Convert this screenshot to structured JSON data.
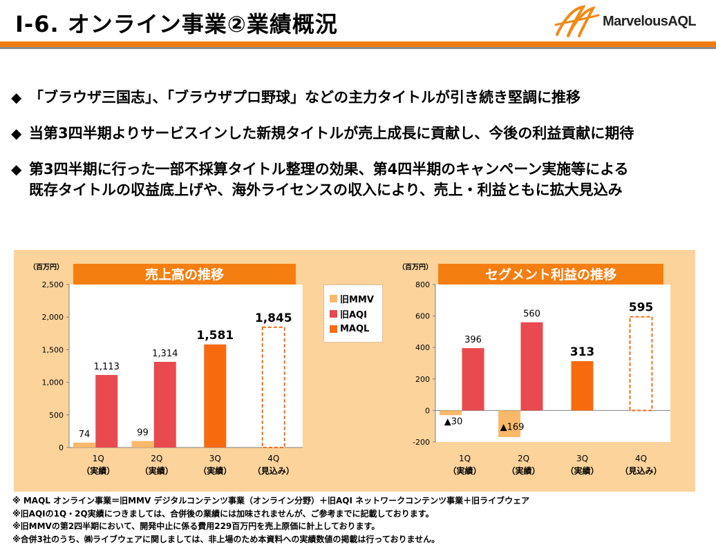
{
  "header": {
    "title": "Ⅰ-6. オンライン事業②業績概況",
    "logo_text": "MarvelousAQL",
    "accent_color": "#f07c10"
  },
  "bullets": [
    {
      "lines": [
        "「ブラウザ三国志」、「ブラウザプロ野球」などの主力タイトルが引き続き堅調に推移"
      ]
    },
    {
      "lines": [
        "当第3四半期よりサービスインした新規タイトルが売上成長に貢献し、今後の利益貢献に期待"
      ]
    },
    {
      "lines": [
        "第3四半期に行った一部不採算タイトル整理の効果、第4四半期のキャンペーン実施等による",
        "既存タイトルの収益底上げや、海外ライセンスの収入により、売上・利益ともに拡大見込み"
      ]
    }
  ],
  "bullet_mark": "◆",
  "legend": [
    {
      "label": "旧MMV",
      "color": "#f9b96a"
    },
    {
      "label": "旧AQI",
      "color": "#e84a4f"
    },
    {
      "label": "MAQL",
      "color": "#f76b0e"
    }
  ],
  "chart_data": [
    {
      "type": "bar",
      "title": "売上高の推移",
      "unit_label": "（百万円）",
      "ylim": [
        0,
        2500
      ],
      "yticks": [
        "0",
        "500",
        "1,000",
        "1,500",
        "2,000",
        "2,500"
      ],
      "ytick_values": [
        0,
        500,
        1000,
        1500,
        2000,
        2500
      ],
      "categories": [
        [
          "1Q",
          "（実績）"
        ],
        [
          "2Q",
          "（実績）"
        ],
        [
          "3Q",
          "（実績）"
        ],
        [
          "4Q",
          "（見込み）"
        ]
      ],
      "series": [
        {
          "name": "旧MMV",
          "values": [
            74,
            99,
            null,
            null
          ]
        },
        {
          "name": "旧AQI",
          "values": [
            1113,
            1314,
            null,
            null
          ]
        },
        {
          "name": "MAQL",
          "values": [
            null,
            null,
            1581,
            1845
          ]
        }
      ],
      "labels": {
        "旧MMV": [
          "74",
          "99",
          "",
          ""
        ],
        "旧AQI": [
          "1,113",
          "1,314",
          "",
          ""
        ],
        "MAQL": [
          "",
          "",
          "1,581",
          "1,845"
        ]
      },
      "forecast_index": 3,
      "grid": false
    },
    {
      "type": "bar",
      "title": "セグメント利益の推移",
      "unit_label": "（百万円）",
      "ylim": [
        -200,
        800
      ],
      "yticks": [
        "-200",
        "0",
        "200",
        "400",
        "600",
        "800"
      ],
      "ytick_values": [
        -200,
        0,
        200,
        400,
        600,
        800
      ],
      "categories": [
        [
          "1Q",
          "（実績）"
        ],
        [
          "2Q",
          "（実績）"
        ],
        [
          "3Q",
          "（実績）"
        ],
        [
          "4Q",
          "（見込み）"
        ]
      ],
      "series": [
        {
          "name": "旧MMV",
          "values": [
            -30,
            -169,
            null,
            null
          ]
        },
        {
          "name": "旧AQI",
          "values": [
            396,
            560,
            null,
            null
          ]
        },
        {
          "name": "MAQL",
          "values": [
            null,
            null,
            313,
            595
          ]
        }
      ],
      "labels": {
        "旧MMV": [
          "▲30",
          "▲169",
          "",
          ""
        ],
        "旧AQI": [
          "396",
          "560",
          "",
          ""
        ],
        "MAQL": [
          "",
          "",
          "313",
          "595"
        ]
      },
      "forecast_index": 3,
      "grid": false
    }
  ],
  "notes": [
    "※ MAQL オンライン事業＝旧MMV デジタルコンテンツ事業（オンライン分野）＋旧AQI ネットワークコンテンツ事業＋旧ライブウェア",
    "※旧AQIの1Q・2Q実績につきましては、合併後の業績には加味されませんが、ご参考までに記載しております。",
    "※旧MMVの第2四半期において、開発中止に係る費用229百万円を売上原価に計上しております。",
    "※合併3社のうち、㈱ライブウェアに関しましては、非上場のため本資料への実績数値の掲載は行っておりません。"
  ]
}
